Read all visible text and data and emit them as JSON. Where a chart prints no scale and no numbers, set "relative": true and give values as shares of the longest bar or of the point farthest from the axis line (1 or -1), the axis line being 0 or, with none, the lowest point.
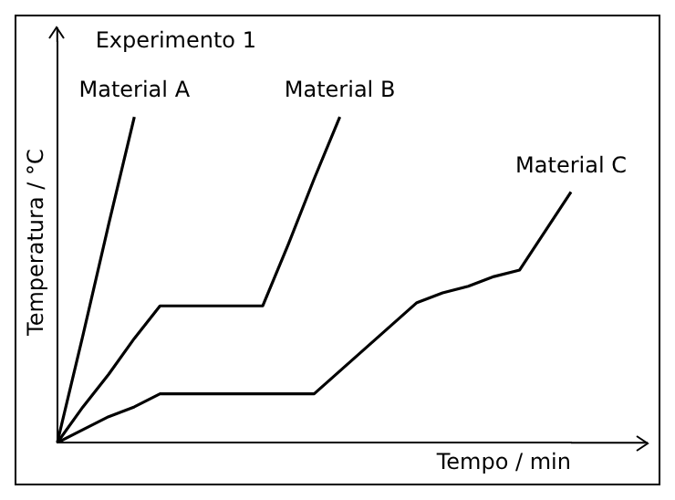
{
  "chart_data": {
    "type": "line",
    "title": "Experimento 1",
    "xlabel": "Tempo / min",
    "ylabel": "Temperatura / °C",
    "relative": true,
    "grid": false,
    "legend": false,
    "marker": "none",
    "line_style": "solid",
    "tick_labels": false,
    "categories": [
      null,
      null,
      null,
      null,
      null,
      null,
      null,
      null,
      null,
      null,
      null,
      null,
      null,
      null,
      null,
      null,
      null,
      null,
      null,
      null,
      null
    ],
    "series": [
      {
        "name": "Material A",
        "color": "#000000",
        "values": [
          0,
          0.33,
          0.67,
          1,
          null,
          null,
          null,
          null,
          null,
          null,
          null,
          null,
          null,
          null,
          null,
          null,
          null,
          null,
          null,
          null,
          null
        ]
      },
      {
        "name": "Material B",
        "color": "#000000",
        "values": [
          0,
          0.11,
          0.21,
          0.32,
          0.42,
          0.42,
          0.42,
          0.42,
          0.42,
          0.61,
          0.81,
          1,
          null,
          null,
          null,
          null,
          null,
          null,
          null,
          null,
          null
        ]
      },
      {
        "name": "Material C",
        "color": "#000000",
        "values": [
          0,
          0.04,
          0.08,
          0.11,
          0.15,
          0.15,
          0.15,
          0.15,
          0.15,
          0.15,
          0.15,
          0.22,
          0.29,
          0.36,
          0.43,
          0.46,
          0.48,
          0.51,
          0.53,
          0.65,
          0.77
        ]
      }
    ]
  }
}
